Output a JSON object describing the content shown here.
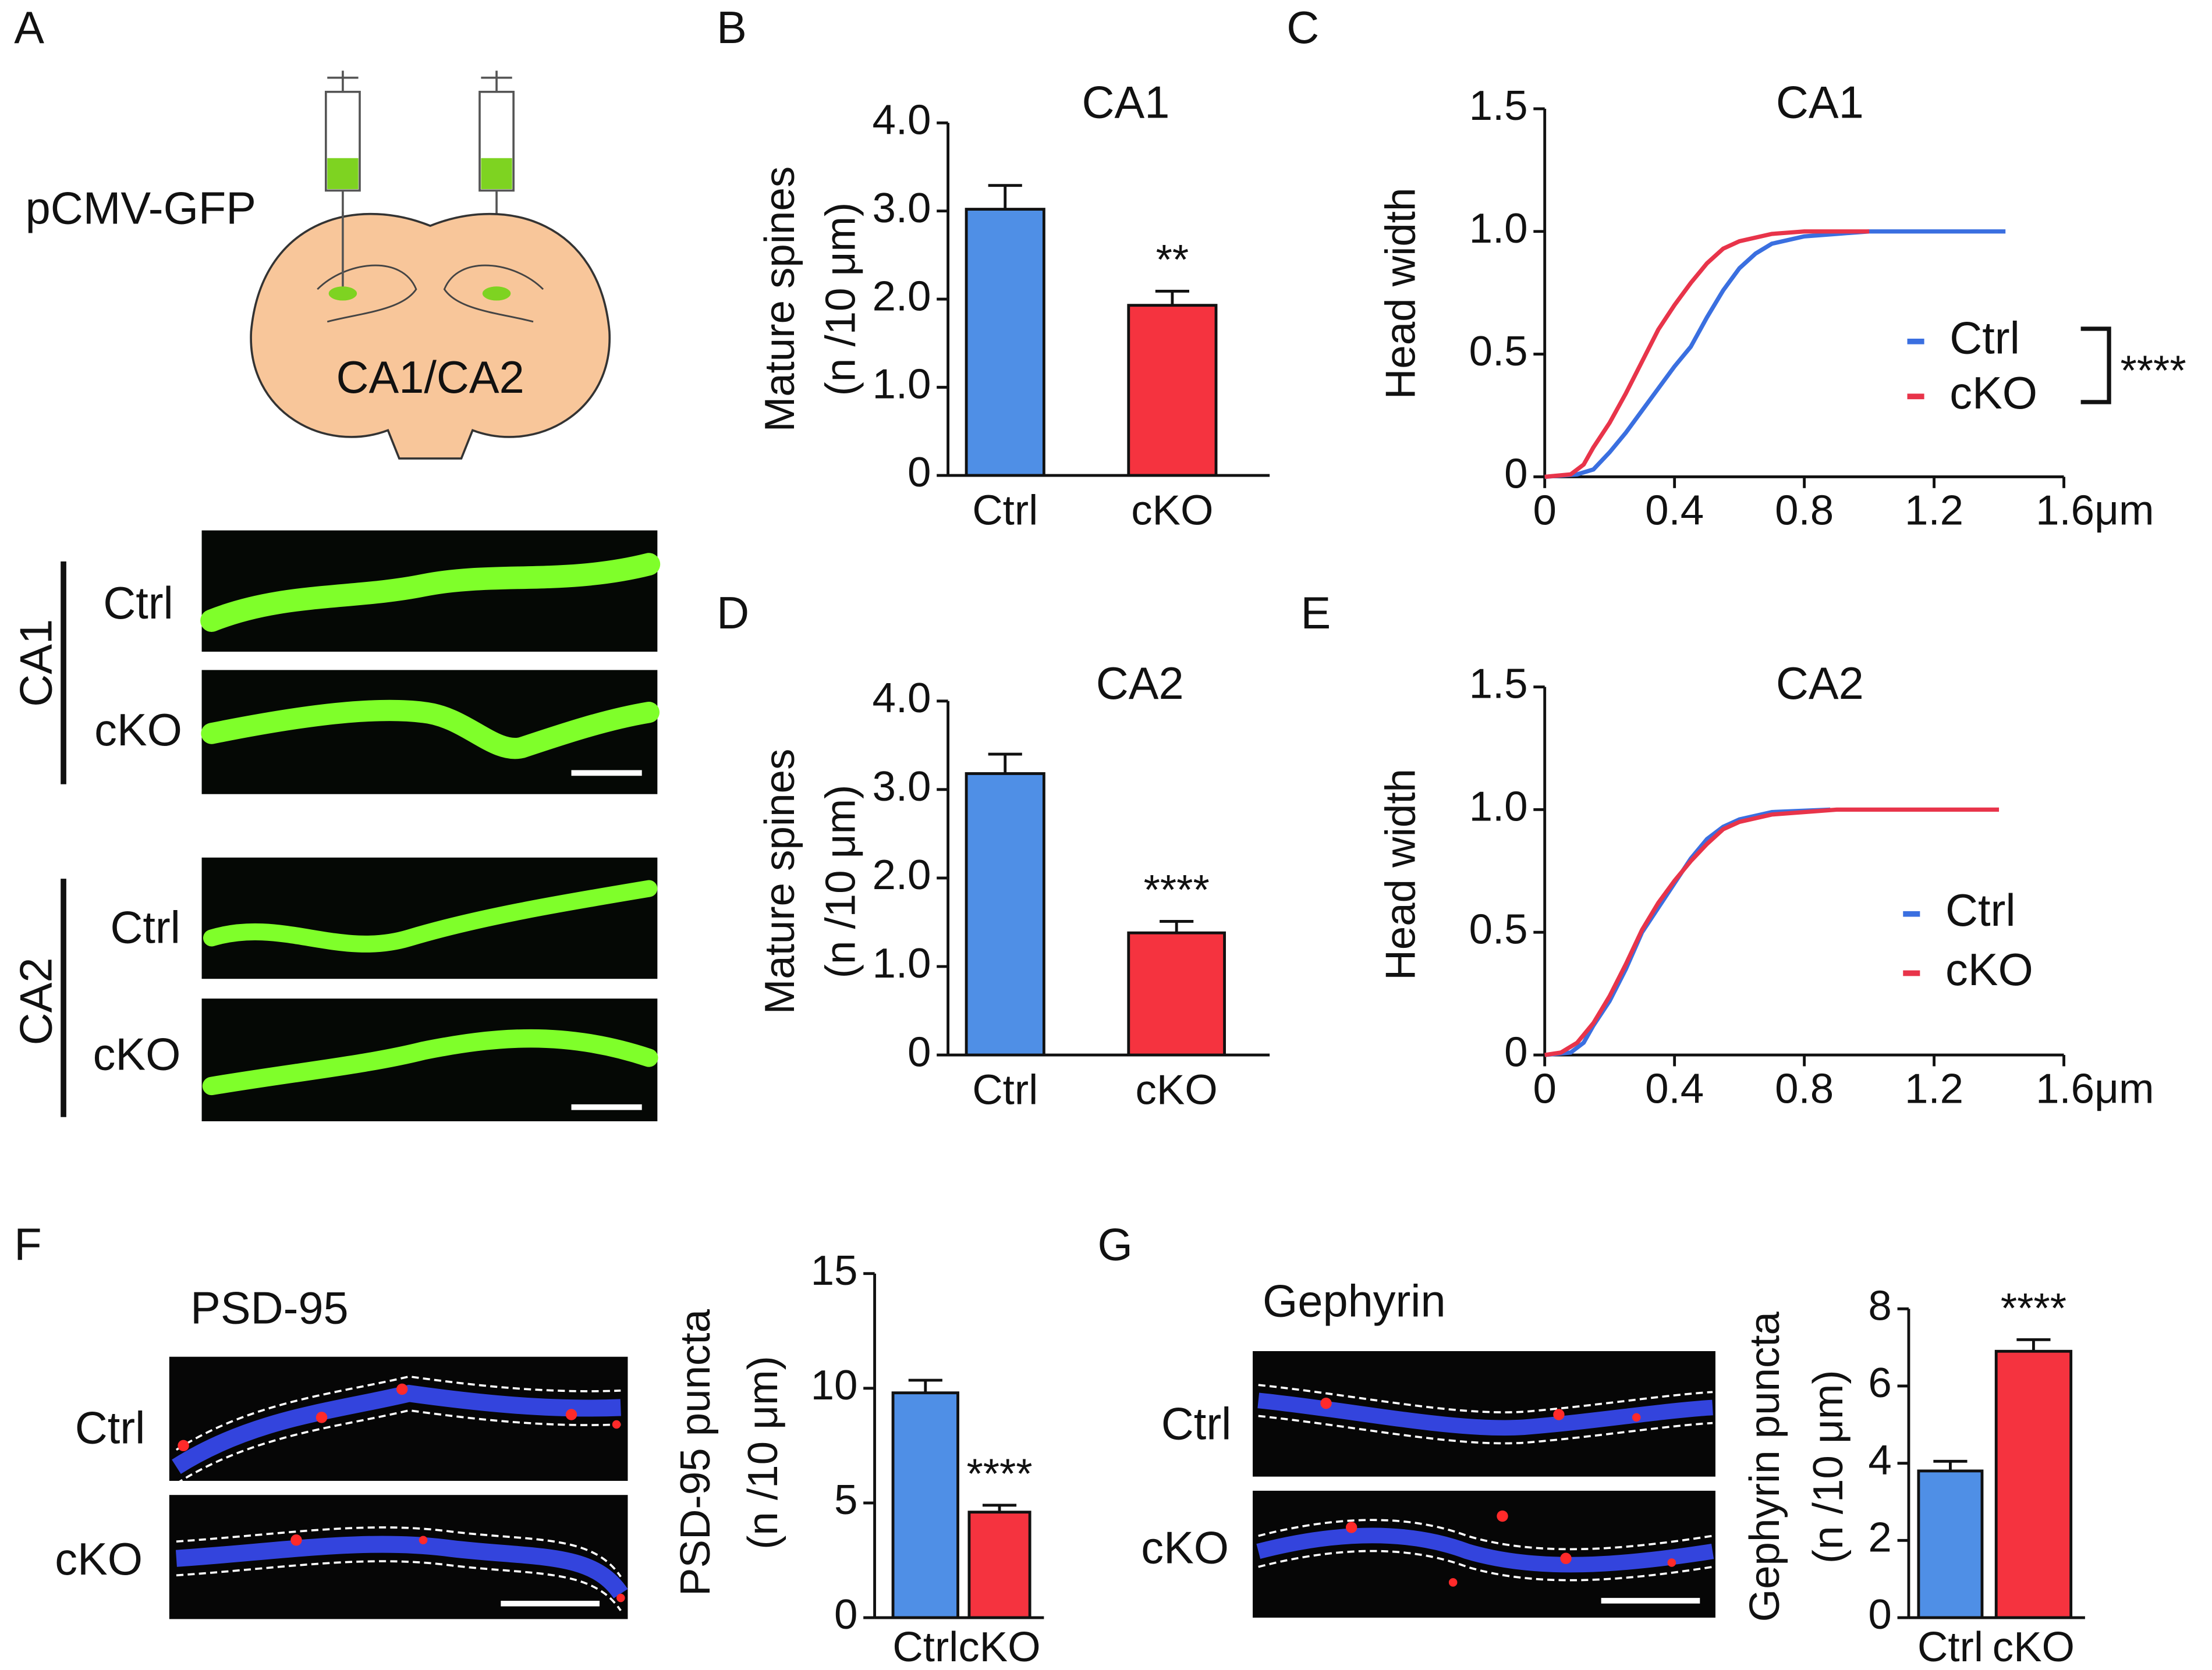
{
  "figure": {
    "panel_letters": [
      "A",
      "B",
      "C",
      "D",
      "E",
      "F",
      "G"
    ],
    "injection": "pCMV-GFP",
    "region": "CA1/CA2",
    "rows_a": [
      {
        "region": "CA1",
        "conditions": [
          "Ctrl",
          "cKO"
        ]
      },
      {
        "region": "CA2",
        "conditions": [
          "Ctrl",
          "cKO"
        ]
      }
    ],
    "panel_f": {
      "stain": "PSD-95",
      "conditions": [
        "Ctrl",
        "cKO"
      ]
    },
    "panel_g": {
      "stain": "Gephyrin",
      "conditions": [
        "Ctrl",
        "cKO"
      ]
    }
  },
  "chart_data": [
    {
      "type": "bar",
      "title": "CA1",
      "ylabel": "Mature spines",
      "ylabel2": "(n /10 μm)",
      "categories": [
        "Ctrl",
        "cKO"
      ],
      "values": [
        3.02,
        1.93
      ],
      "errors": [
        0.27,
        0.16
      ],
      "colors": [
        "#4f8fe6",
        "#f5333f"
      ],
      "annotation": "**",
      "ylim": [
        0,
        4
      ],
      "yticks": [
        0,
        {
          "value": 1,
          "label": "1.0"
        },
        {
          "value": 2,
          "label": "2.0"
        },
        {
          "value": 3,
          "label": "3.0"
        },
        {
          "value": 4,
          "label": "4.0"
        }
      ]
    },
    {
      "type": "line",
      "title": "CA1",
      "ylabel": "Head width",
      "annotation": "****",
      "xlim": [
        0,
        1.6
      ],
      "xticks": [
        0,
        0.4,
        0.8,
        1.2,
        {
          "value": 1.6,
          "label": "1.6μm"
        }
      ],
      "ylim": [
        0,
        1.5
      ],
      "yticks": [
        0,
        0.5,
        {
          "value": 1,
          "label": "1.0"
        },
        1.5
      ],
      "series": [
        {
          "name": "Ctrl",
          "color": "#3a6fe0",
          "x": [
            0,
            0.1,
            0.15,
            0.2,
            0.25,
            0.3,
            0.35,
            0.4,
            0.45,
            0.5,
            0.55,
            0.6,
            0.65,
            0.7,
            0.8,
            0.9,
            1.0,
            1.42
          ],
          "values": [
            0,
            0.01,
            0.03,
            0.1,
            0.18,
            0.27,
            0.36,
            0.45,
            0.53,
            0.65,
            0.76,
            0.85,
            0.91,
            0.95,
            0.98,
            0.99,
            1.0,
            1.0
          ]
        },
        {
          "name": "cKO",
          "color": "#e8344a",
          "x": [
            0,
            0.08,
            0.12,
            0.15,
            0.2,
            0.25,
            0.3,
            0.35,
            0.4,
            0.45,
            0.5,
            0.55,
            0.6,
            0.7,
            0.8,
            1.0
          ],
          "values": [
            0,
            0.01,
            0.05,
            0.12,
            0.22,
            0.34,
            0.47,
            0.6,
            0.7,
            0.79,
            0.87,
            0.93,
            0.96,
            0.99,
            1.0,
            1.0
          ]
        }
      ]
    },
    {
      "type": "bar",
      "title": "CA2",
      "ylabel": "Mature spines",
      "ylabel2": "(n /10 μm)",
      "categories": [
        "Ctrl",
        "cKO"
      ],
      "values": [
        3.18,
        1.38
      ],
      "errors": [
        0.22,
        0.13
      ],
      "colors": [
        "#4f8fe6",
        "#f5333f"
      ],
      "annotation": "****",
      "ylim": [
        0,
        4
      ],
      "yticks": [
        0,
        {
          "value": 1,
          "label": "1.0"
        },
        {
          "value": 2,
          "label": "2.0"
        },
        {
          "value": 3,
          "label": "3.0"
        },
        {
          "value": 4,
          "label": "4.0"
        }
      ]
    },
    {
      "type": "line",
      "title": "CA2",
      "ylabel": "Head width",
      "xlim": [
        0,
        1.6
      ],
      "xticks": [
        0,
        0.4,
        0.8,
        1.2,
        {
          "value": 1.6,
          "label": "1.6μm"
        }
      ],
      "ylim": [
        0,
        1.5
      ],
      "yticks": [
        0,
        0.5,
        {
          "value": 1,
          "label": "1.0"
        },
        1.5
      ],
      "series": [
        {
          "name": "Ctrl",
          "color": "#3a6fe0",
          "x": [
            0,
            0.08,
            0.12,
            0.15,
            0.2,
            0.25,
            0.3,
            0.35,
            0.4,
            0.45,
            0.5,
            0.55,
            0.6,
            0.7,
            0.88
          ],
          "values": [
            0,
            0.01,
            0.05,
            0.12,
            0.22,
            0.35,
            0.5,
            0.6,
            0.7,
            0.8,
            0.88,
            0.93,
            0.96,
            0.99,
            1.0
          ]
        },
        {
          "name": "cKO",
          "color": "#e8344a",
          "x": [
            0,
            0.05,
            0.1,
            0.15,
            0.2,
            0.25,
            0.3,
            0.35,
            0.4,
            0.45,
            0.5,
            0.55,
            0.6,
            0.7,
            0.9,
            1.4
          ],
          "values": [
            0,
            0.01,
            0.05,
            0.13,
            0.24,
            0.37,
            0.51,
            0.62,
            0.71,
            0.79,
            0.86,
            0.92,
            0.95,
            0.98,
            1.0,
            1.0
          ]
        }
      ]
    },
    {
      "type": "bar",
      "ylabel": "PSD-95 puncta",
      "ylabel2": "(n /10 μm)",
      "categories": [
        "Ctrl",
        "cKO"
      ],
      "values": [
        9.8,
        4.6
      ],
      "errors": [
        0.55,
        0.3
      ],
      "colors": [
        "#4f8fe6",
        "#f5333f"
      ],
      "annotation": "****",
      "ylim": [
        0,
        15
      ],
      "yticks": [
        0,
        5,
        10,
        15
      ]
    },
    {
      "type": "bar",
      "ylabel": "Gephyrin puncta",
      "ylabel2": "(n /10 μm)",
      "categories": [
        "Ctrl",
        "cKO"
      ],
      "values": [
        3.8,
        6.9
      ],
      "errors": [
        0.25,
        0.3
      ],
      "colors": [
        "#4f8fe6",
        "#f5333f"
      ],
      "annotation": "****",
      "ylim": [
        0,
        8
      ],
      "yticks": [
        0,
        2,
        4,
        6,
        8
      ]
    }
  ]
}
